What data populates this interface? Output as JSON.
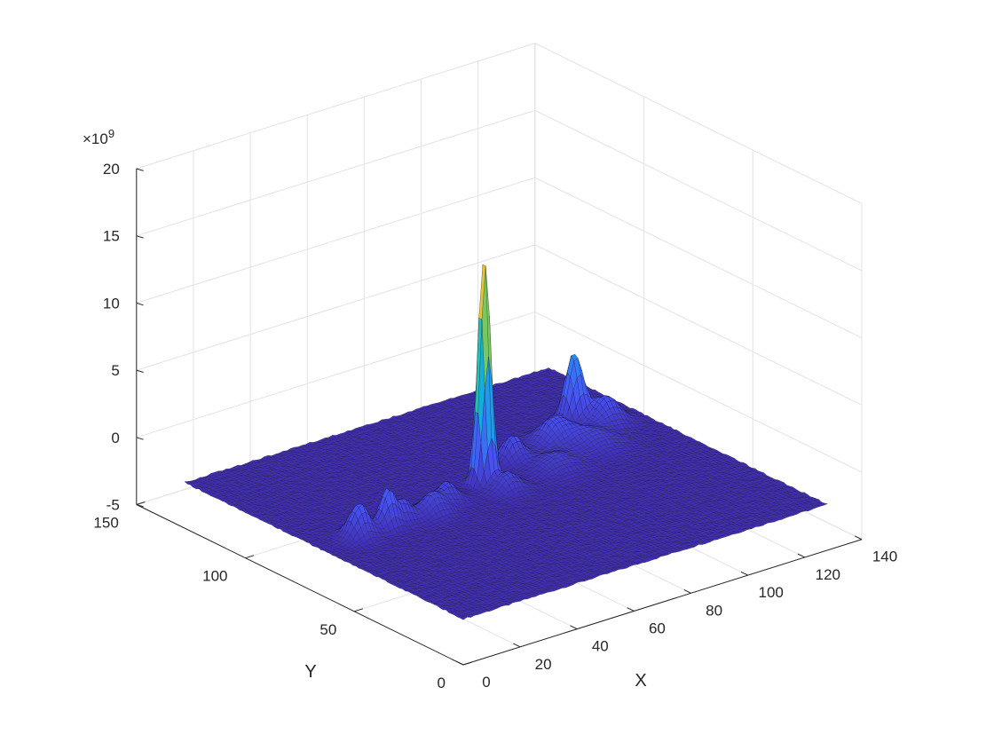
{
  "chart_data": {
    "type": "surface",
    "xlabel": "X",
    "ylabel": "Y",
    "zlabel": "",
    "z_exponent_label": "×10",
    "z_exponent_power": "9",
    "xlim": [
      0,
      140
    ],
    "ylim": [
      0,
      150
    ],
    "zlim": [
      -5,
      20
    ],
    "z_scale": 1000000000,
    "x_ticks": [
      "0",
      "20",
      "40",
      "60",
      "80",
      "100",
      "120",
      "140"
    ],
    "y_ticks": [
      "0",
      "50",
      "100",
      "150"
    ],
    "z_ticks": [
      "-5",
      "0",
      "5",
      "10",
      "15",
      "20"
    ],
    "grid": true,
    "colormap": "parula",
    "surface_domain": {
      "x": [
        0,
        128
      ],
      "y": [
        0,
        128
      ]
    },
    "baseline_z": -1.6,
    "peaks": [
      {
        "x": 64,
        "y": 74,
        "height": 17.2,
        "spread": 1.8
      },
      {
        "x": 110,
        "y": 93,
        "height": 5.0,
        "spread": 2.5
      },
      {
        "x": 14,
        "y": 66,
        "height": 2.4,
        "spread": 3.0
      },
      {
        "x": 24,
        "y": 66,
        "height": 2.8,
        "spread": 2.3
      },
      {
        "x": 30,
        "y": 67,
        "height": 1.6,
        "spread": 2.5
      },
      {
        "x": 40,
        "y": 66,
        "height": 1.5,
        "spread": 3.5
      },
      {
        "x": 48,
        "y": 70,
        "height": 1.4,
        "spread": 3.0
      },
      {
        "x": 66,
        "y": 66,
        "height": 1.3,
        "spread": 3.5
      },
      {
        "x": 80,
        "y": 82,
        "height": 1.8,
        "spread": 3.0
      },
      {
        "x": 96,
        "y": 84,
        "height": 1.8,
        "spread": 4.5
      },
      {
        "x": 116,
        "y": 86,
        "height": 2.0,
        "spread": 4.0
      },
      {
        "x": 104,
        "y": 76,
        "height": 1.1,
        "spread": 6.0
      },
      {
        "x": 86,
        "y": 70,
        "height": 1.0,
        "spread": 5.0
      }
    ]
  }
}
